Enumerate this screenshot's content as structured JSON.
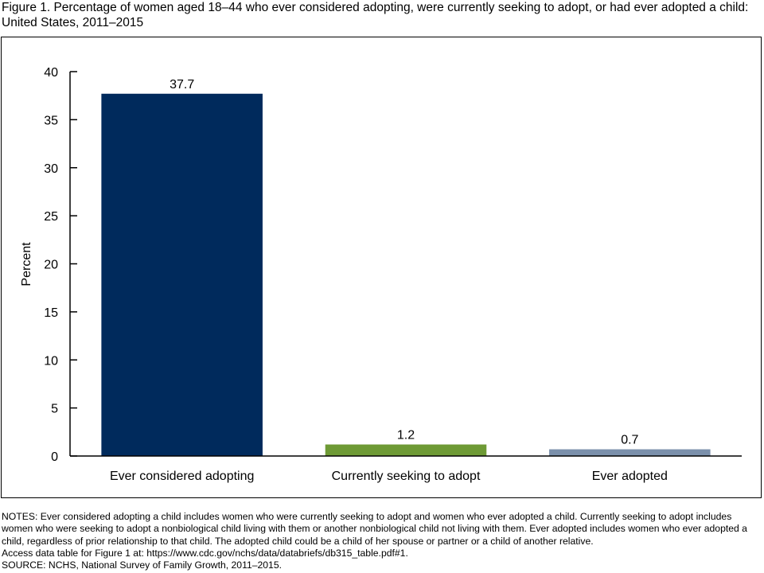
{
  "figure": {
    "title": "Figure 1. Percentage of women aged 18–44 who ever considered adopting, were currently seeking to adopt, or had ever adopted a child: United States, 2011–2015"
  },
  "chart_data": {
    "type": "bar",
    "categories": [
      "Ever considered adopting",
      "Currently seeking to adopt",
      "Ever adopted"
    ],
    "values": [
      37.7,
      1.2,
      0.7
    ],
    "value_labels": [
      "37.7",
      "1.2",
      "0.7"
    ],
    "colors": [
      "#002a5c",
      "#6e9a35",
      "#7b90ab"
    ],
    "title": "",
    "xlabel": "",
    "ylabel": "Percent",
    "ylim": [
      0,
      40
    ],
    "yticks": [
      0,
      5,
      10,
      15,
      20,
      25,
      30,
      35,
      40
    ],
    "grid": false,
    "legend": "none"
  },
  "notes": {
    "text": "NOTES: Ever considered adopting a child includes women who were currently seeking to adopt and women who ever adopted a child. Currently seeking to adopt includes women who were seeking to adopt a nonbiological child living with them or another nonbiological child not living with them. Ever adopted includes women who ever adopted a child, regardless of prior relationship to that child. The adopted child could be a child of her spouse or partner or a child of another relative.",
    "access": "Access data table for Figure 1 at: https://www.cdc.gov/nchs/data/databriefs/db315_table.pdf#1.",
    "source": "SOURCE: NCHS, National Survey of Family Growth, 2011–2015."
  }
}
